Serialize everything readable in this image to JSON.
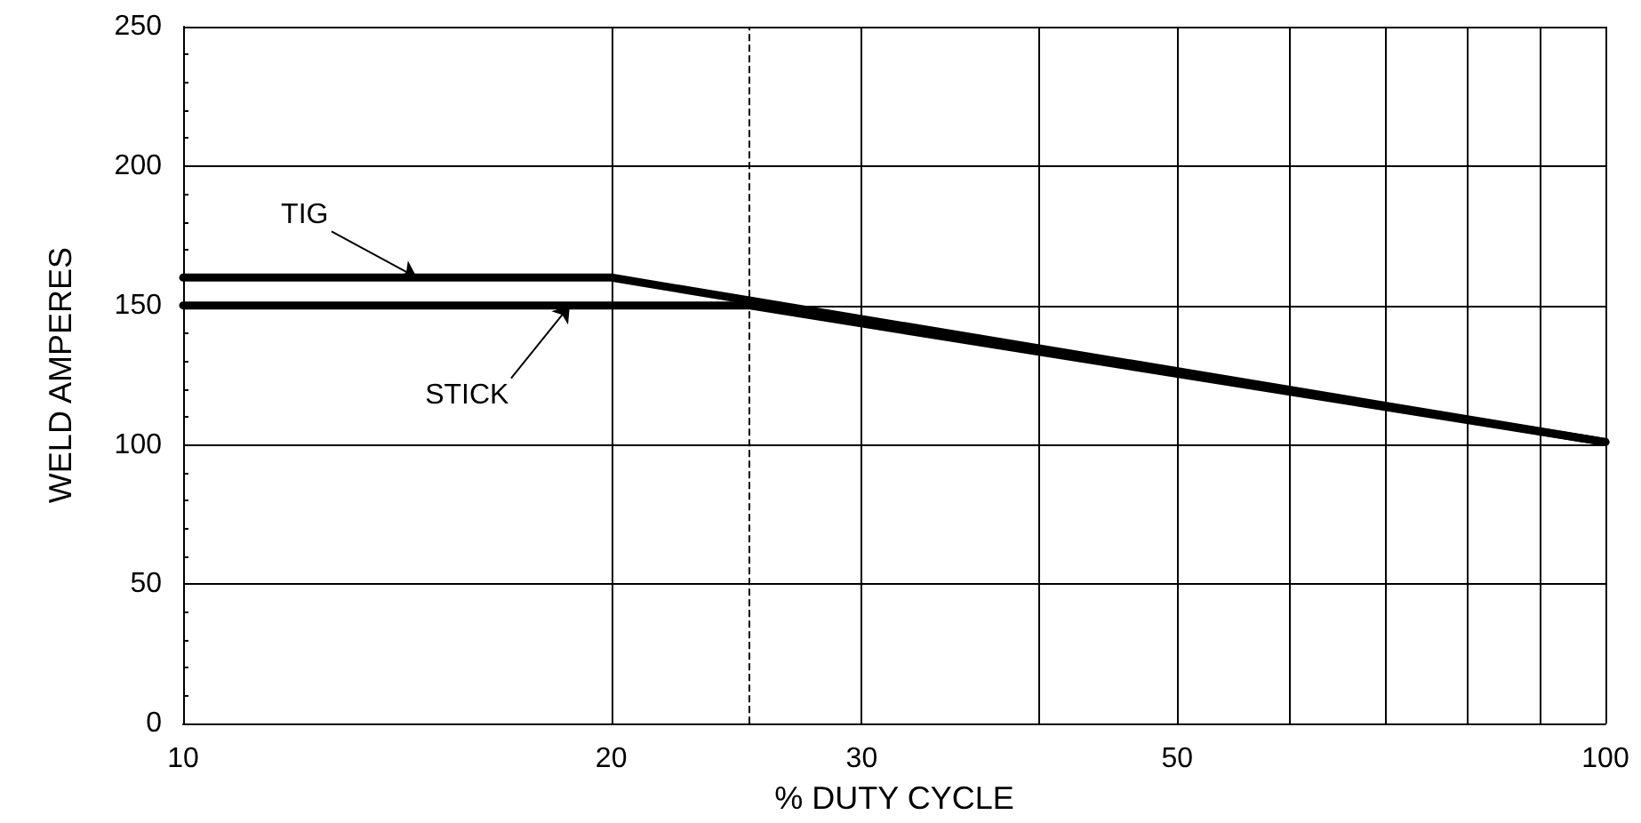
{
  "chart_data": {
    "type": "line",
    "xlabel": "% DUTY CYCLE",
    "ylabel": "WELD AMPERES",
    "log": "x",
    "xlim": [
      10,
      100
    ],
    "xticks": [
      10,
      20,
      30,
      {
        "value": 40,
        "label": null
      },
      50,
      {
        "value": 60,
        "label": null
      },
      {
        "value": 70,
        "label": null
      },
      {
        "value": 80,
        "label": null
      },
      {
        "value": 90,
        "label": null
      },
      100
    ],
    "ylim": [
      0,
      250
    ],
    "yticks": [
      0,
      50,
      100,
      150,
      200,
      250
    ],
    "grid": true,
    "marker": "none",
    "line_style": "solid",
    "series": [
      {
        "color": "#000000",
        "x": [
          10,
          20,
          100
        ],
        "values": [
          160,
          160,
          101
        ]
      },
      {
        "color": "#000000",
        "x": [
          10,
          25,
          100
        ],
        "values": [
          150,
          150,
          101
        ]
      }
    ],
    "ref_lines": [
      {
        "axis": "x",
        "value": 25,
        "line_style": "dashed",
        "color": "#000000"
      }
    ],
    "annotations": [
      {
        "text": "TIG",
        "x": 14.6,
        "y": 160
      },
      {
        "text": "STICK",
        "x": 18.7,
        "y": 150
      }
    ]
  }
}
